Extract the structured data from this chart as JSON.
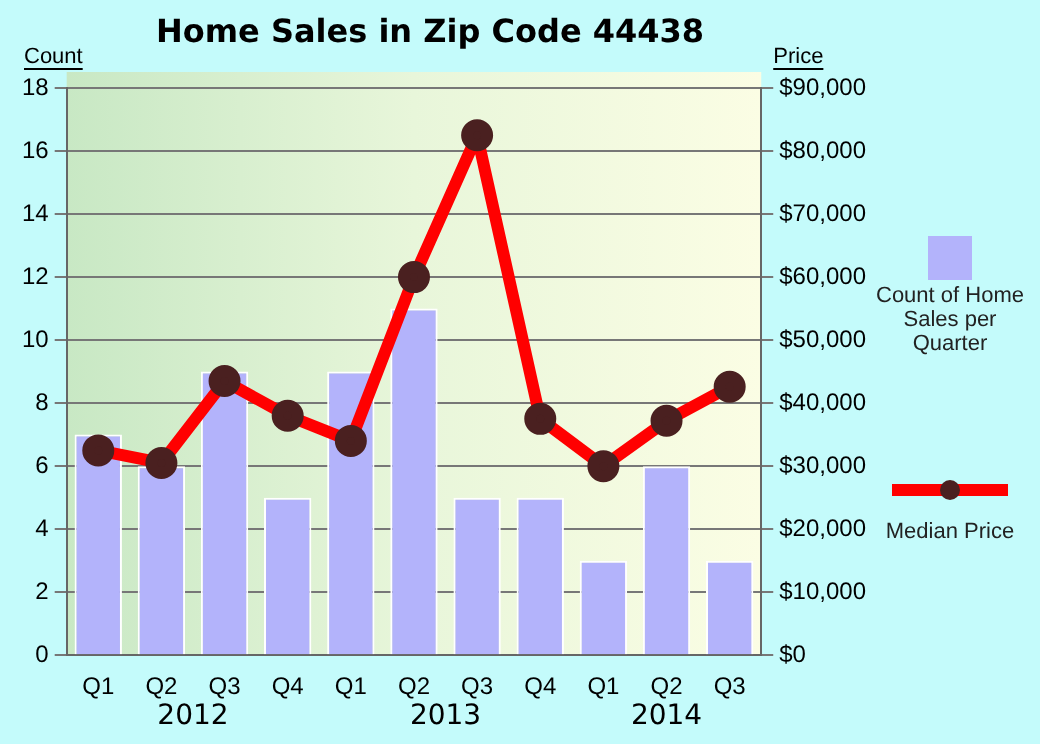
{
  "chart_data": {
    "type": "bar",
    "title": "Home Sales in Zip Code 44438",
    "ylabel": "Count",
    "y2label": "Price",
    "categories": [
      "Q1",
      "Q2",
      "Q3",
      "Q4",
      "Q1",
      "Q2",
      "Q3",
      "Q4",
      "Q1",
      "Q2",
      "Q3"
    ],
    "annotations": [
      "2012",
      "2013",
      "2014"
    ],
    "series": [
      {
        "name": "Count of Home Sales per Quarter",
        "color": "#b3b3fb",
        "values": [
          7,
          6,
          9,
          5,
          9,
          11,
          5,
          5,
          3,
          6,
          3
        ]
      },
      {
        "name": "Median Price",
        "type": "line",
        "axis": "y2",
        "color": "#ff0000",
        "marker": "circle",
        "values": [
          32500,
          30500,
          43500,
          38000,
          34000,
          60000,
          82500,
          37500,
          30000,
          37200,
          42600
        ]
      }
    ],
    "ylim": [
      0,
      18
    ],
    "yticks": [
      0,
      2,
      4,
      6,
      8,
      10,
      12,
      14,
      16,
      18
    ],
    "y2lim": [
      0,
      90000
    ],
    "y2ticks": [
      {
        "value": 0,
        "label": "$0"
      },
      {
        "value": 10000,
        "label": "$10,000"
      },
      {
        "value": 20000,
        "label": "$20,000"
      },
      {
        "value": 30000,
        "label": "$30,000"
      },
      {
        "value": 40000,
        "label": "$40,000"
      },
      {
        "value": 50000,
        "label": "$50,000"
      },
      {
        "value": 60000,
        "label": "$60,000"
      },
      {
        "value": 70000,
        "label": "$70,000"
      },
      {
        "value": 80000,
        "label": "$80,000"
      },
      {
        "value": 90000,
        "label": "$90,000"
      }
    ],
    "grid": "y",
    "legend": "right"
  }
}
